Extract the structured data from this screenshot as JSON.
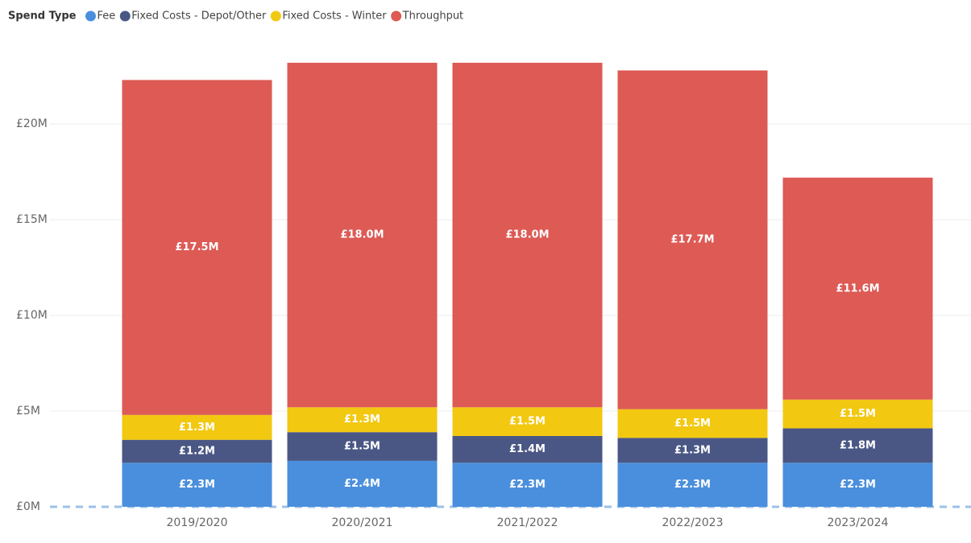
{
  "chart_data": {
    "type": "stacked_bar",
    "legend_title": "Spend Type",
    "legend_position": "top-left",
    "categories": [
      "2019/2020",
      "2020/2021",
      "2021/2022",
      "2022/2023",
      "2023/2024"
    ],
    "series": [
      {
        "name": "Fee",
        "color": "#4a8fdd",
        "values": [
          2300000,
          2400000,
          2300000,
          2300000,
          2300000
        ],
        "value_labels": [
          "£2.3M",
          "£2.4M",
          "£2.3M",
          "£2.3M",
          "£2.3M"
        ]
      },
      {
        "name": "Fixed Costs - Depot/Other",
        "color": "#4a5785",
        "values": [
          1200000,
          1500000,
          1400000,
          1300000,
          1800000
        ],
        "value_labels": [
          "£1.2M",
          "£1.5M",
          "£1.4M",
          "£1.3M",
          "£1.8M"
        ]
      },
      {
        "name": "Fixed Costs - Winter",
        "color": "#f2c811",
        "values": [
          1300000,
          1300000,
          1500000,
          1500000,
          1500000
        ],
        "value_labels": [
          "£1.3M",
          "£1.3M",
          "£1.5M",
          "£1.5M",
          "£1.5M"
        ]
      },
      {
        "name": "Throughput",
        "color": "#dd5a55",
        "values": [
          17500000,
          18000000,
          18000000,
          17700000,
          11600000
        ],
        "value_labels": [
          "£17.5M",
          "£18.0M",
          "£18.0M",
          "£17.7M",
          "£11.6M"
        ]
      }
    ],
    "ylim": [
      0,
      24000000
    ],
    "yticks": [
      {
        "value": 0,
        "label": "£0M"
      },
      {
        "value": 5000000,
        "label": "£5M"
      },
      {
        "value": 10000000,
        "label": "£10M"
      },
      {
        "value": 15000000,
        "label": "£15M"
      },
      {
        "value": 20000000,
        "label": "£20M"
      }
    ],
    "grid": true
  }
}
